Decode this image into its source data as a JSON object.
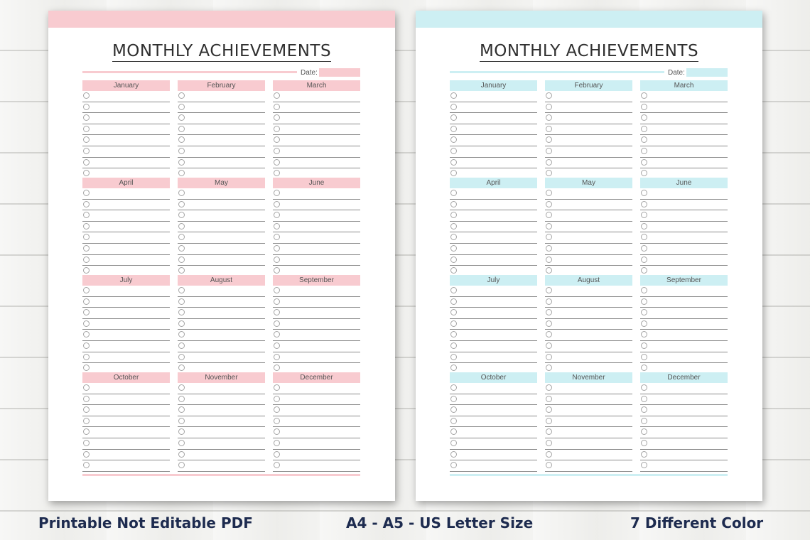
{
  "title": "MONTHLY ACHIEVEMENTS",
  "date_label": "Date:",
  "months": [
    "January",
    "February",
    "March",
    "April",
    "May",
    "June",
    "July",
    "August",
    "September",
    "October",
    "November",
    "December"
  ],
  "entries_per_month": 8,
  "themes": [
    {
      "name": "pink",
      "accent": "#f8cbd0"
    },
    {
      "name": "blue",
      "accent": "#cdeff3"
    }
  ],
  "footer": {
    "left": "Printable Not Editable PDF",
    "center": "A4 - A5 - US Letter Size",
    "right": "7 Different Color"
  }
}
